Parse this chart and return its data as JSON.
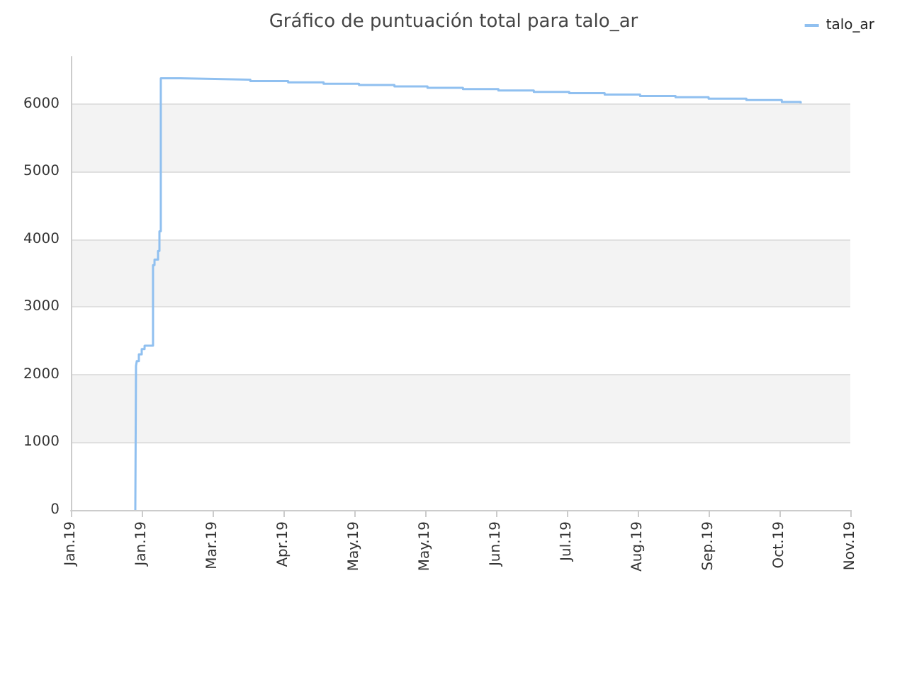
{
  "chart_data": {
    "type": "step",
    "title": "Gráfico de puntuación total para talo_ar",
    "xlim": [
      "2019-01-01",
      "2019-11-27"
    ],
    "xticks": [
      {
        "value": "2019-01-01",
        "label": "Jan.19"
      },
      {
        "value": "2019-01-31",
        "label": "Jan.19"
      },
      {
        "value": "2019-03-02",
        "label": "Mar.19"
      },
      {
        "value": "2019-04-01",
        "label": "Apr.19"
      },
      {
        "value": "2019-05-01",
        "label": "May.19"
      },
      {
        "value": "2019-05-31",
        "label": "May.19"
      },
      {
        "value": "2019-06-30",
        "label": "Jun.19"
      },
      {
        "value": "2019-07-30",
        "label": "Jul.19"
      },
      {
        "value": "2019-08-29",
        "label": "Aug.19"
      },
      {
        "value": "2019-09-28",
        "label": "Sep.19"
      },
      {
        "value": "2019-10-28",
        "label": "Oct.19"
      },
      {
        "value": "2019-11-27",
        "label": "Nov.19"
      }
    ],
    "ylim": [
      0,
      6700
    ],
    "yticks": [
      0,
      1000,
      2000,
      3000,
      4000,
      5000,
      6000
    ],
    "series": [
      {
        "name": "talo_ar",
        "color": "#90c0f0",
        "x": [
          "2019-01-28T07:00",
          "2019-01-28T14:00",
          "2019-01-28T22:00",
          "2019-01-29T19:00",
          "2019-01-31T00:00",
          "2019-02-01T05:00",
          "2019-02-04T19:00",
          "2019-02-05T10:00",
          "2019-02-06T22:00",
          "2019-02-07T12:00",
          "2019-02-08T02:00",
          "2019-02-16T05:00",
          "2019-03-03",
          "2019-03-18",
          "2019-04-03",
          "2019-04-18",
          "2019-05-03",
          "2019-05-18",
          "2019-06-01",
          "2019-06-16",
          "2019-07-01",
          "2019-07-16",
          "2019-07-31",
          "2019-08-15",
          "2019-08-30",
          "2019-09-14",
          "2019-09-28",
          "2019-10-14",
          "2019-10-29",
          "2019-11-06"
        ],
        "values": [
          0,
          2130,
          2200,
          2300,
          2380,
          2430,
          3620,
          3700,
          3830,
          4120,
          6380,
          6370,
          6360,
          6340,
          6320,
          6300,
          6280,
          6260,
          6240,
          6220,
          6200,
          6180,
          6160,
          6140,
          6120,
          6100,
          6080,
          6060,
          6030,
          6010
        ]
      }
    ],
    "grid": "y",
    "legend": "top right",
    "marker": "none"
  }
}
